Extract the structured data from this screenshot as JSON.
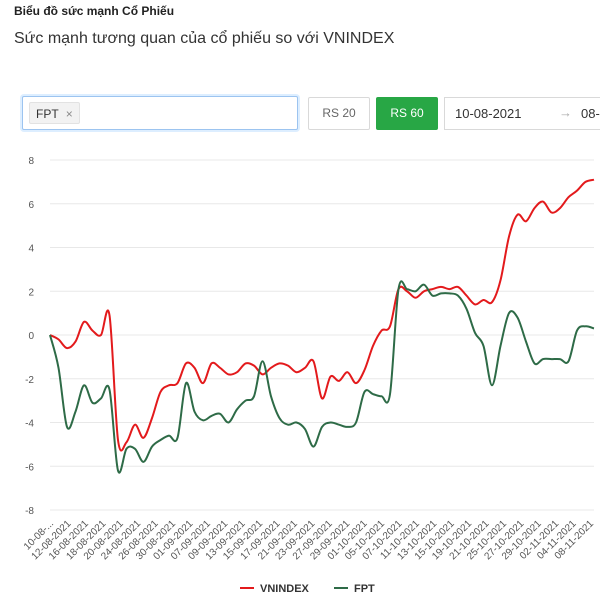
{
  "header": {
    "title": "Biểu đồ sức mạnh Cổ Phiếu",
    "subtitle": "Sức mạnh tương quan của cổ phiếu so với VNINDEX"
  },
  "controls": {
    "tag_label": "FPT",
    "tag_close": "×",
    "rs20_label": "RS 20",
    "rs60_label": "RS 60",
    "active_button": "RS 60",
    "date_start": "10-08-2021",
    "date_arrow": "→",
    "date_end": "08-",
    "colors": {
      "active": "#28a745",
      "input_border": "#9cc4f0"
    }
  },
  "chart_data": {
    "type": "line",
    "x": [
      "10-08-2021",
      "11-08-2021",
      "12-08-2021",
      "13-08-2021",
      "16-08-2021",
      "17-08-2021",
      "18-08-2021",
      "19-08-2021",
      "20-08-2021",
      "23-08-2021",
      "24-08-2021",
      "25-08-2021",
      "26-08-2021",
      "27-08-2021",
      "30-08-2021",
      "31-08-2021",
      "01-09-2021",
      "06-09-2021",
      "07-09-2021",
      "08-09-2021",
      "09-09-2021",
      "10-09-2021",
      "13-09-2021",
      "14-09-2021",
      "15-09-2021",
      "16-09-2021",
      "17-09-2021",
      "20-09-2021",
      "21-09-2021",
      "22-09-2021",
      "23-09-2021",
      "24-09-2021",
      "27-09-2021",
      "28-09-2021",
      "29-09-2021",
      "30-09-2021",
      "01-10-2021",
      "04-10-2021",
      "05-10-2021",
      "06-10-2021",
      "07-10-2021",
      "08-10-2021",
      "11-10-2021",
      "12-10-2021",
      "13-10-2021",
      "14-10-2021",
      "15-10-2021",
      "18-10-2021",
      "19-10-2021",
      "20-10-2021",
      "21-10-2021",
      "22-10-2021",
      "25-10-2021",
      "26-10-2021",
      "27-10-2021",
      "28-10-2021",
      "29-10-2021",
      "01-11-2021",
      "02-11-2021",
      "03-11-2021",
      "04-11-2021",
      "05-11-2021",
      "08-11-2021",
      "09-11-2021",
      "10-11-2021"
    ],
    "x_tick_labels": [
      "10-08-...",
      "12-08-2021",
      "16-08-2021",
      "18-08-2021",
      "20-08-2021",
      "24-08-2021",
      "26-08-2021",
      "30-08-2021",
      "01-09-2021",
      "07-09-2021",
      "09-09-2021",
      "13-09-2021",
      "15-09-2021",
      "17-09-2021",
      "21-09-2021",
      "23-09-2021",
      "27-09-2021",
      "29-09-2021",
      "01-10-2021",
      "05-10-2021",
      "07-10-2021",
      "11-10-2021",
      "13-10-2021",
      "15-10-2021",
      "19-10-2021",
      "21-10-2021",
      "25-10-2021",
      "27-10-2021",
      "29-10-2021",
      "02-11-2021",
      "04-11-2021",
      "08-11-2021"
    ],
    "series": [
      {
        "name": "VNINDEX",
        "color": "#e31a1c",
        "values": [
          0,
          -0.2,
          -0.6,
          -0.3,
          0.6,
          0.2,
          0,
          0.9,
          -4.8,
          -4.9,
          -4.1,
          -4.7,
          -3.8,
          -2.6,
          -2.3,
          -2.2,
          -1.3,
          -1.5,
          -2.2,
          -1.3,
          -1.5,
          -1.8,
          -1.7,
          -1.3,
          -1.4,
          -1.8,
          -1.5,
          -1.3,
          -1.4,
          -1.7,
          -1.5,
          -1.2,
          -2.9,
          -1.9,
          -2.1,
          -1.7,
          -2.2,
          -1.6,
          -0.5,
          0.2,
          0.4,
          2.1,
          2.0,
          1.7,
          2.0,
          2.1,
          2.2,
          2.1,
          2.2,
          1.8,
          1.4,
          1.6,
          1.5,
          2.5,
          4.5,
          5.5,
          5.2,
          5.8,
          6.1,
          5.6,
          5.8,
          6.3,
          6.6,
          7.0,
          7.1
        ]
      },
      {
        "name": "FPT",
        "color": "#2e6b47",
        "values": [
          0,
          -1.5,
          -4.2,
          -3.5,
          -2.3,
          -3.1,
          -2.9,
          -2.5,
          -6.2,
          -5.2,
          -5.2,
          -5.8,
          -5.1,
          -4.8,
          -4.6,
          -4.7,
          -2.2,
          -3.5,
          -3.9,
          -3.7,
          -3.6,
          -4.0,
          -3.4,
          -3.0,
          -2.8,
          -1.2,
          -2.8,
          -3.8,
          -4.1,
          -4.0,
          -4.3,
          -5.1,
          -4.2,
          -4.0,
          -4.1,
          -4.2,
          -4.0,
          -2.6,
          -2.7,
          -2.8,
          -2.7,
          2.1,
          2.1,
          2.0,
          2.3,
          1.8,
          1.9,
          1.9,
          1.8,
          1.2,
          0.1,
          -0.5,
          -2.3,
          -0.5,
          1.0,
          0.8,
          -0.3,
          -1.3,
          -1.1,
          -1.1,
          -1.1,
          -1.2,
          0.2,
          0.4,
          0.3
        ]
      }
    ],
    "title": "",
    "xlabel": "",
    "ylabel": "",
    "ylim": [
      -8,
      8
    ],
    "y_ticks": [
      8,
      6,
      4,
      2,
      0,
      -2,
      -4,
      -6,
      -8
    ],
    "grid": "horizontal",
    "legend_position": "bottom"
  }
}
